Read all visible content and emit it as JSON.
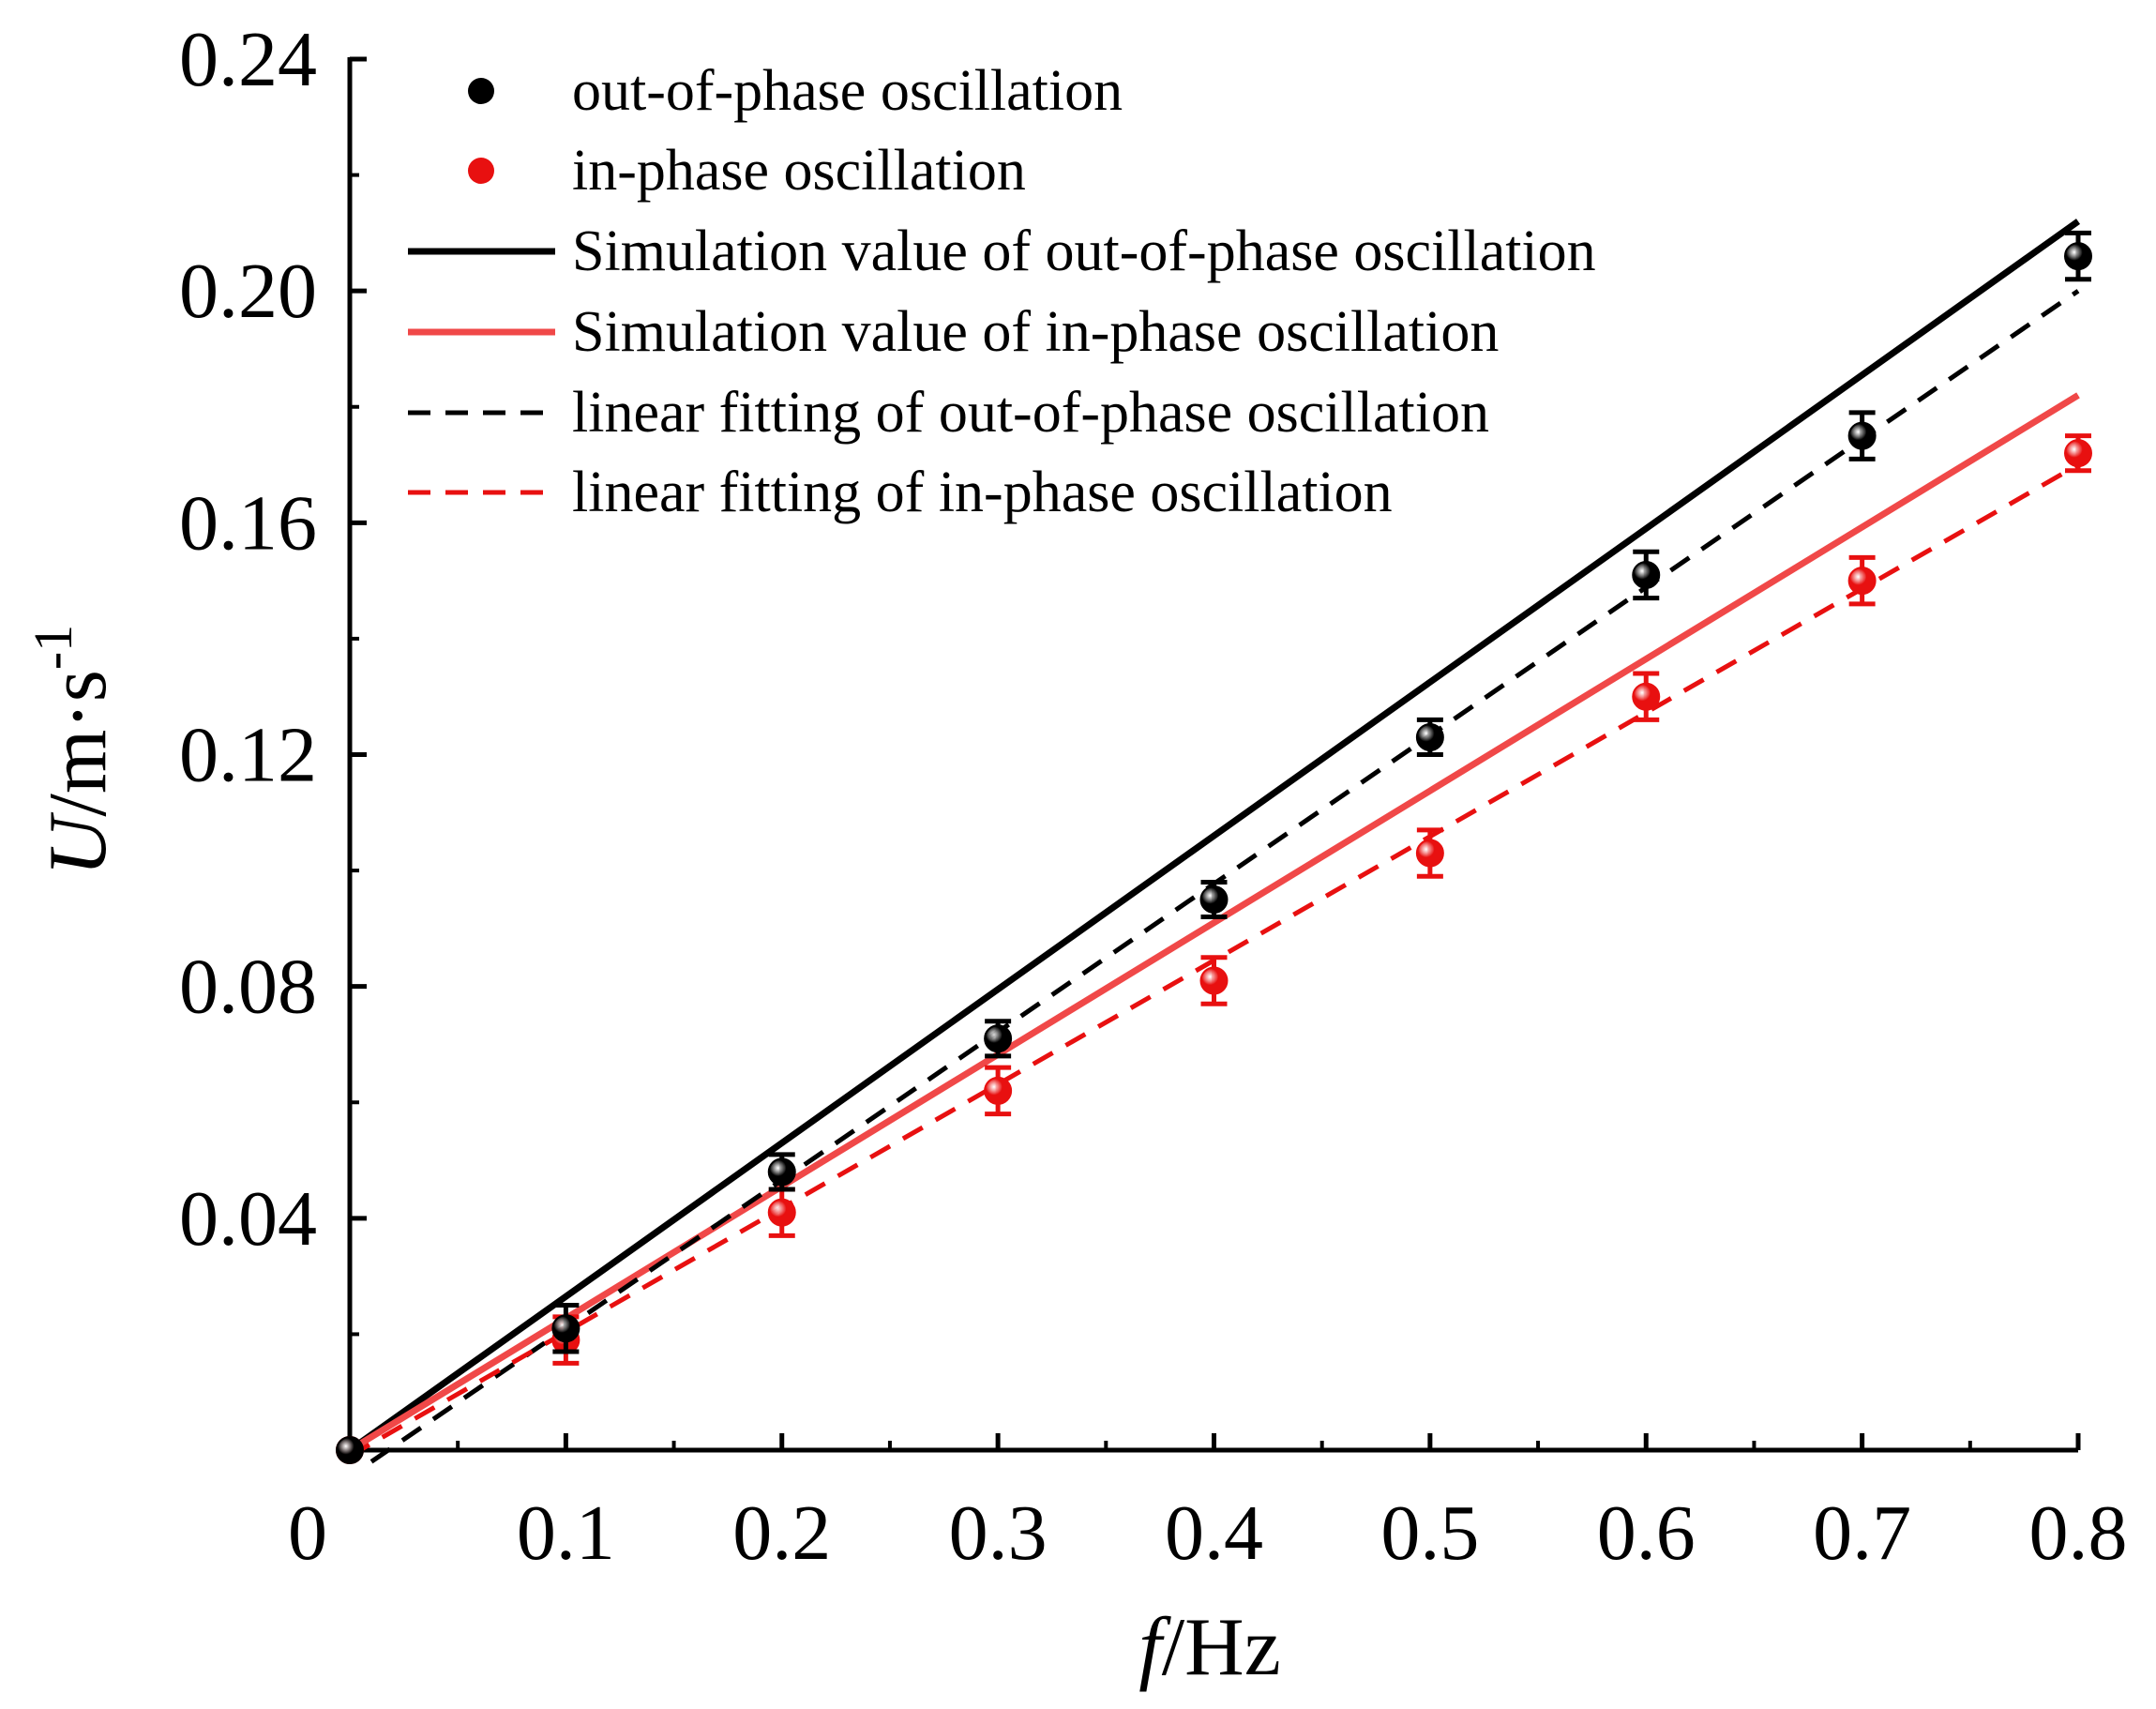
{
  "chart_data": {
    "type": "scatter",
    "xlabel": {
      "var": "f",
      "unit": "/Hz"
    },
    "ylabel": {
      "var": "U",
      "unit": "/m·s",
      "sup": "-1"
    },
    "xlim": [
      0,
      0.8
    ],
    "ylim": [
      0,
      0.24
    ],
    "xticks": [
      0,
      0.1,
      0.2,
      0.3,
      0.4,
      0.5,
      0.6,
      0.7,
      0.8
    ],
    "xtick_labels": [
      "0",
      "0.1",
      "0.2",
      "0.3",
      "0.4",
      "0.5",
      "0.6",
      "0.7",
      "0.8"
    ],
    "yticks": [
      0.04,
      0.08,
      0.12,
      0.16,
      0.2,
      0.24
    ],
    "ytick_labels": [
      "0.04",
      "0.08",
      "0.12",
      "0.16",
      "0.20",
      "0.24"
    ],
    "grid": false,
    "legend_position": "top-left",
    "colors": {
      "black": "#000000",
      "red": "#e81010",
      "sim_red": "#f04848"
    },
    "series": [
      {
        "name": "out-of-phase oscillation",
        "kind": "scatter",
        "color": "#000000",
        "x": [
          0,
          0.1,
          0.2,
          0.3,
          0.4,
          0.5,
          0.6,
          0.7,
          0.8
        ],
        "y": [
          0,
          0.021,
          0.048,
          0.071,
          0.095,
          0.123,
          0.151,
          0.175,
          0.206
        ],
        "yerr": [
          0,
          0.004,
          0.003,
          0.003,
          0.003,
          0.003,
          0.004,
          0.004,
          0.004
        ]
      },
      {
        "name": "in-phase oscillation",
        "kind": "scatter",
        "color": "#e81010",
        "x": [
          0,
          0.1,
          0.2,
          0.3,
          0.4,
          0.5,
          0.6,
          0.7,
          0.8
        ],
        "y": [
          0,
          0.019,
          0.041,
          0.062,
          0.081,
          0.103,
          0.13,
          0.15,
          0.172
        ],
        "yerr": [
          0,
          0.004,
          0.004,
          0.004,
          0.004,
          0.004,
          0.004,
          0.004,
          0.003
        ]
      },
      {
        "name": "Simulation value of out-of-phase oscillation",
        "kind": "line",
        "style": "solid",
        "color": "#000000",
        "x": [
          0,
          0.8
        ],
        "y": [
          0,
          0.212
        ]
      },
      {
        "name": "Simulation value of in-phase oscillation",
        "kind": "line",
        "style": "solid",
        "color": "#f04848",
        "x": [
          0,
          0.8
        ],
        "y": [
          0,
          0.182
        ]
      },
      {
        "name": "linear fitting of out-of-phase oscillation",
        "kind": "line",
        "style": "dashed",
        "color": "#000000",
        "x": [
          0.01,
          0.8
        ],
        "y": [
          -0.002,
          0.2
        ]
      },
      {
        "name": "linear fitting of in-phase oscillation",
        "kind": "line",
        "style": "dashed",
        "color": "#e81010",
        "x": [
          0,
          0.8
        ],
        "y": [
          -0.001,
          0.17
        ]
      }
    ]
  }
}
